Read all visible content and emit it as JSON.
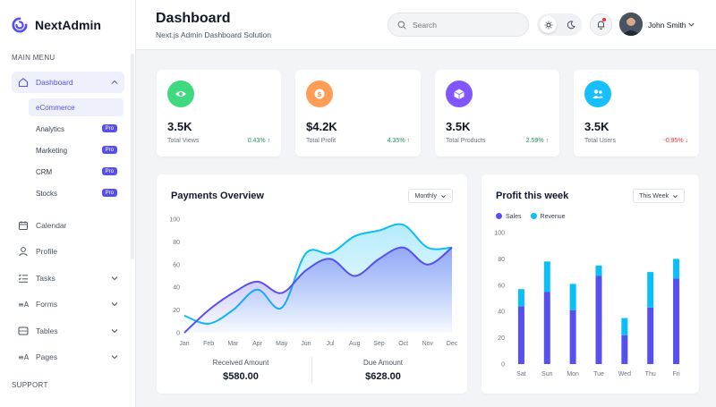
{
  "sidebar": {
    "logo_text": "NextAdmin",
    "main_menu_title": "MAIN MENU",
    "support_title": "SUPPORT",
    "dashboard_label": "Dashboard",
    "sub_items": [
      {
        "label": "eCommerce",
        "badge": ""
      },
      {
        "label": "Analytics",
        "badge": "Pro"
      },
      {
        "label": "Marketing",
        "badge": "Pro"
      },
      {
        "label": "CRM",
        "badge": "Pro"
      },
      {
        "label": "Stocks",
        "badge": "Pro"
      }
    ],
    "items": [
      {
        "label": "Calendar",
        "icon": "calendar-icon"
      },
      {
        "label": "Profile",
        "icon": "user-icon"
      },
      {
        "label": "Tasks",
        "icon": "tasks-icon"
      },
      {
        "label": "Forms",
        "icon": "forms-icon"
      },
      {
        "label": "Tables",
        "icon": "table-icon"
      },
      {
        "label": "Pages",
        "icon": "pages-icon"
      }
    ]
  },
  "header": {
    "title": "Dashboard",
    "subtitle": "Next.js Admin Dashboard Solution",
    "search_placeholder": "Search",
    "user_name": "John Smith"
  },
  "stats": [
    {
      "value": "3.5K",
      "label": "Total Views",
      "change": "0.43% ↑",
      "trend": "up",
      "color": "#3fd97f",
      "icon": "eye-icon"
    },
    {
      "value": "$4.2K",
      "label": "Total Profit",
      "change": "4.35% ↑",
      "trend": "up",
      "color": "#ff9c55",
      "icon": "dollar-icon"
    },
    {
      "value": "3.5K",
      "label": "Total Products",
      "change": "2.59% ↑",
      "trend": "up",
      "color": "#8155ff",
      "icon": "box-icon"
    },
    {
      "value": "3.5K",
      "label": "Total Users",
      "change": "-0.95% ↓",
      "trend": "down",
      "color": "#18bfff",
      "icon": "users-icon"
    }
  ],
  "payments": {
    "title": "Payments Overview",
    "dropdown": "Monthly",
    "received_label": "Received Amount",
    "received_value": "$580.00",
    "due_label": "Due Amount",
    "due_value": "$628.00"
  },
  "profit": {
    "title": "Profit this week",
    "dropdown": "This Week"
  },
  "chart_data": [
    {
      "type": "area",
      "title": "Payments Overview",
      "categories": [
        "Jan",
        "Feb",
        "Mar",
        "Apr",
        "May",
        "Jun",
        "Jul",
        "Aug",
        "Sep",
        "Oct",
        "Nov",
        "Dec"
      ],
      "yticks": [
        0,
        20,
        40,
        60,
        80,
        100
      ],
      "ylim": [
        0,
        100
      ],
      "series": [
        {
          "color": "#5750f1",
          "values": [
            0,
            20,
            35,
            45,
            35,
            55,
            65,
            50,
            65,
            75,
            60,
            75
          ]
        },
        {
          "color": "#0abef6",
          "values": [
            15,
            8,
            20,
            38,
            22,
            70,
            70,
            85,
            90,
            95,
            75,
            75
          ]
        }
      ]
    },
    {
      "type": "bar",
      "title": "Profit this week",
      "categories": [
        "Sat",
        "Sun",
        "Mon",
        "Tue",
        "Wed",
        "Thu",
        "Fri"
      ],
      "yticks": [
        0,
        20,
        40,
        60,
        80,
        100
      ],
      "ylim": [
        0,
        100
      ],
      "stacked": true,
      "series": [
        {
          "name": "Sales",
          "color": "#5750f1",
          "values": [
            44,
            55,
            41,
            67,
            22,
            43,
            65
          ]
        },
        {
          "name": "Revenue",
          "color": "#0abef6",
          "values": [
            13,
            23,
            20,
            8,
            13,
            27,
            15
          ]
        }
      ]
    }
  ]
}
